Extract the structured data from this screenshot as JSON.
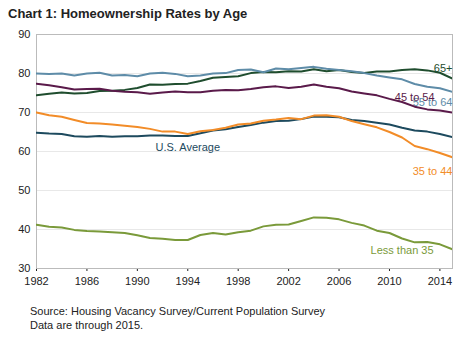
{
  "chart_data": {
    "type": "line",
    "title": "Chart 1: Homeownership Rates by Age",
    "source": "Source: Housing Vacancy Survey/Current Population Survey",
    "note": "Data are through 2015.",
    "x": [
      1982,
      1983,
      1984,
      1985,
      1986,
      1987,
      1988,
      1989,
      1990,
      1991,
      1992,
      1993,
      1994,
      1995,
      1996,
      1997,
      1998,
      1999,
      2000,
      2001,
      2002,
      2003,
      2004,
      2005,
      2006,
      2007,
      2008,
      2009,
      2010,
      2011,
      2012,
      2013,
      2014,
      2015
    ],
    "xlim": [
      1982,
      2015
    ],
    "xticks": [
      1982,
      1986,
      1990,
      1994,
      1998,
      2002,
      2006,
      2010,
      2014
    ],
    "ylim": [
      30,
      90
    ],
    "yticks": [
      30,
      40,
      50,
      60,
      70,
      80,
      90
    ],
    "grid": true,
    "series": [
      {
        "name": "65+",
        "color": "#1f4d2e",
        "values": [
          74.4,
          74.8,
          75.1,
          74.9,
          75.0,
          75.5,
          75.6,
          75.8,
          76.3,
          77.2,
          77.1,
          77.3,
          77.4,
          78.1,
          78.9,
          79.1,
          79.3,
          80.1,
          80.4,
          80.3,
          80.6,
          80.5,
          81.1,
          80.6,
          80.9,
          80.4,
          80.1,
          80.5,
          80.5,
          80.9,
          81.1,
          80.8,
          80.2,
          78.7
        ]
      },
      {
        "name": "55 to 64",
        "color": "#5e8ca8",
        "values": [
          80.0,
          79.9,
          80.0,
          79.5,
          80.0,
          80.2,
          79.5,
          79.6,
          79.3,
          80.0,
          80.2,
          79.9,
          79.3,
          79.5,
          80.0,
          80.1,
          80.9,
          81.0,
          80.3,
          81.3,
          81.1,
          81.4,
          81.7,
          81.2,
          80.9,
          80.6,
          80.1,
          79.5,
          79.0,
          78.5,
          77.3,
          76.6,
          76.2,
          75.3
        ]
      },
      {
        "name": "45 to 54",
        "color": "#5a1a4a",
        "values": [
          77.4,
          77.0,
          76.5,
          75.9,
          76.0,
          76.1,
          75.6,
          75.3,
          75.2,
          74.8,
          75.1,
          75.4,
          75.2,
          75.2,
          75.6,
          75.8,
          75.7,
          76.0,
          76.5,
          76.7,
          76.3,
          76.6,
          77.2,
          76.6,
          76.2,
          75.4,
          74.9,
          74.4,
          73.5,
          72.7,
          71.5,
          70.8,
          70.5,
          70.0
        ]
      },
      {
        "name": "U.S. Average",
        "color": "#1d4a5e",
        "values": [
          64.8,
          64.6,
          64.5,
          63.9,
          63.8,
          64.0,
          63.8,
          63.9,
          63.9,
          64.1,
          64.1,
          64.0,
          64.0,
          64.7,
          65.4,
          65.7,
          66.3,
          66.8,
          67.4,
          67.8,
          67.9,
          68.3,
          69.0,
          68.9,
          68.8,
          68.1,
          67.8,
          67.4,
          66.9,
          66.1,
          65.4,
          65.1,
          64.5,
          63.7
        ]
      },
      {
        "name": "35 to 44",
        "color": "#f28c28",
        "values": [
          70.0,
          69.3,
          68.9,
          68.1,
          67.3,
          67.2,
          66.9,
          66.6,
          66.3,
          65.8,
          65.1,
          65.1,
          64.5,
          65.2,
          65.5,
          66.1,
          66.9,
          67.2,
          67.9,
          68.2,
          68.6,
          68.3,
          69.2,
          69.3,
          68.9,
          67.8,
          67.0,
          66.2,
          65.0,
          63.6,
          61.4,
          60.6,
          59.6,
          58.5
        ]
      },
      {
        "name": "Less than 35",
        "color": "#7a9a3a",
        "values": [
          41.2,
          40.7,
          40.5,
          39.9,
          39.6,
          39.5,
          39.3,
          39.1,
          38.5,
          37.8,
          37.6,
          37.3,
          37.3,
          38.6,
          39.1,
          38.7,
          39.3,
          39.7,
          40.8,
          41.2,
          41.3,
          42.2,
          43.1,
          43.0,
          42.6,
          41.7,
          41.0,
          39.7,
          39.1,
          37.7,
          36.7,
          36.8,
          36.2,
          34.9
        ]
      }
    ]
  }
}
